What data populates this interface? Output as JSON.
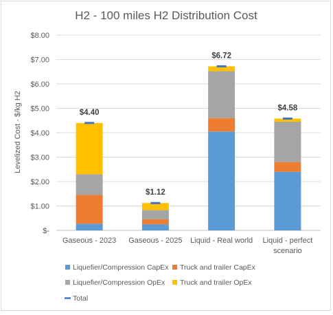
{
  "chart_data": {
    "type": "bar",
    "stacked": true,
    "title": "H2 - 100 miles H2 Distribution Cost",
    "xlabel": "",
    "ylabel": "Levelized Cost - $/kg H2",
    "ylim": [
      0,
      8
    ],
    "yticks": [
      0,
      1,
      2,
      3,
      4,
      5,
      6,
      7,
      8
    ],
    "ytick_labels": [
      "$-",
      "$1.00",
      "$2.00",
      "$3.00",
      "$4.00",
      "$5.00",
      "$6.00",
      "$7.00",
      "$8.00"
    ],
    "grid": true,
    "legend_position": "bottom",
    "categories": [
      [
        "Gaseous - 2023"
      ],
      [
        "Gaseous - 2025"
      ],
      [
        "Liquid - Real world"
      ],
      [
        "Liquid - perfect",
        "scenario"
      ]
    ],
    "series": [
      {
        "name": "Liquefier/Compression CapEx",
        "color": "#5b9bd5",
        "values": [
          0.27,
          0.25,
          4.05,
          2.4
        ]
      },
      {
        "name": "Truck and trailer CapEx",
        "color": "#ed7d31",
        "values": [
          1.18,
          0.2,
          0.55,
          0.4
        ]
      },
      {
        "name": "Liquefier/Compression OpEx",
        "color": "#a5a5a5",
        "values": [
          0.85,
          0.38,
          1.92,
          1.65
        ]
      },
      {
        "name": "Truck and trailer OpEx",
        "color": "#ffc000",
        "values": [
          2.1,
          0.29,
          0.2,
          0.13
        ]
      }
    ],
    "total_series": {
      "name": "Total",
      "color": "#4472c4",
      "values": [
        4.4,
        1.12,
        6.72,
        4.58
      ]
    },
    "total_labels": [
      "$4.40",
      "$1.12",
      "$6.72",
      "$4.58"
    ]
  }
}
